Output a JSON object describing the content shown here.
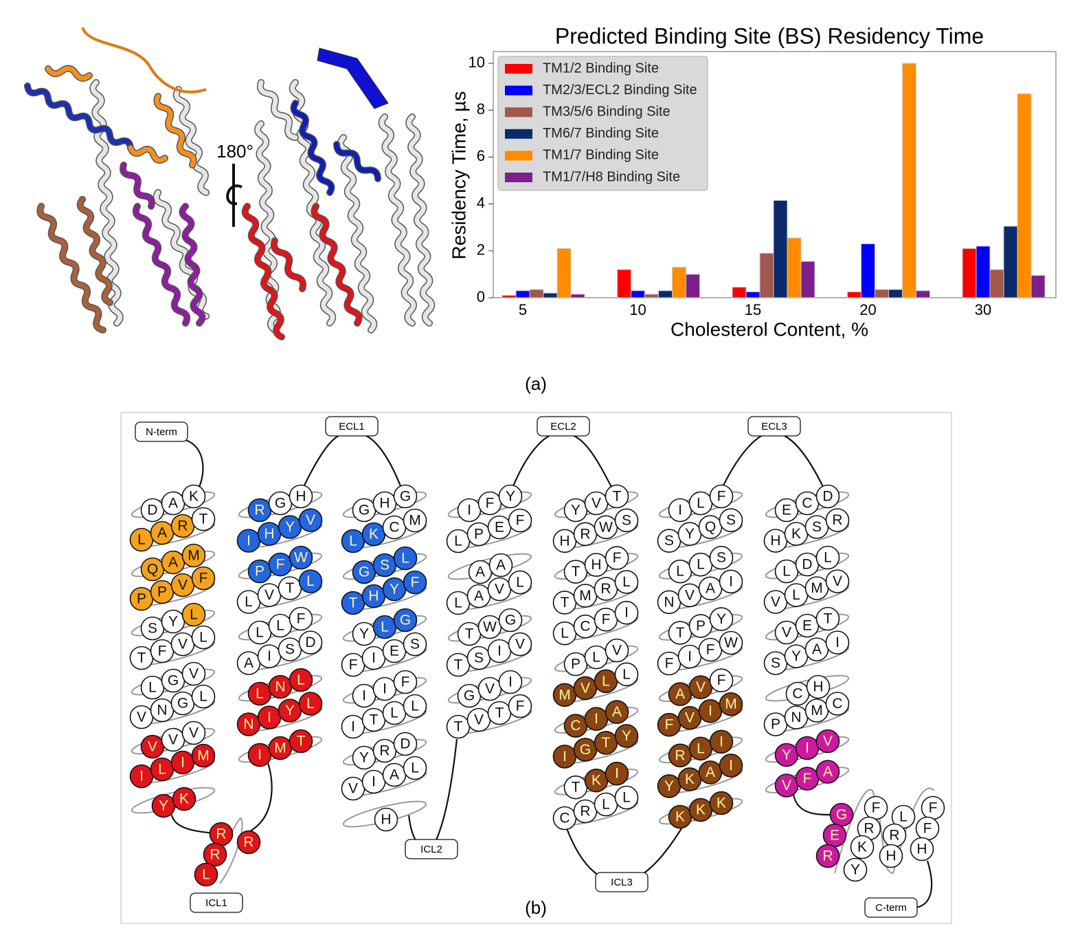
{
  "panel_a_label": "(a)",
  "panel_b_label": "(b)",
  "rotation_label": "180°",
  "chart_data": {
    "type": "bar",
    "title": "Predicted Binding Site (BS) Residency Time",
    "x_label": "Cholesterol Content, %",
    "y_label": "Residency Time, µs",
    "categories": [
      "5",
      "10",
      "15",
      "20",
      "30"
    ],
    "series": [
      {
        "name": "TM1/2 Binding Site",
        "color": "#ff0000",
        "values": [
          0.1,
          1.2,
          0.45,
          0.25,
          2.1
        ]
      },
      {
        "name": "TM2/3/ECL2 Binding Site",
        "color": "#0000ff",
        "values": [
          0.3,
          0.3,
          0.25,
          2.3,
          2.2
        ]
      },
      {
        "name": "TM3/5/6 Binding Site",
        "color": "#a0584e",
        "values": [
          0.35,
          0.15,
          1.9,
          0.35,
          1.2
        ]
      },
      {
        "name": "TM6/7 Binding Site",
        "color": "#0a2a6b",
        "values": [
          0.2,
          0.3,
          4.15,
          0.35,
          3.05
        ]
      },
      {
        "name": "TM1/7 Binding Site",
        "color": "#ff8c00",
        "values": [
          2.1,
          1.3,
          2.55,
          10.0,
          8.7
        ]
      },
      {
        "name": "TM1/7/H8 Binding Site",
        "color": "#7a1f8c",
        "values": [
          0.15,
          1.0,
          1.55,
          0.3,
          0.95
        ]
      }
    ],
    "ylim": [
      0,
      10.5
    ],
    "yticks": [
      0,
      2,
      4,
      6,
      8,
      10
    ],
    "grid": false,
    "legend": "upper-left"
  },
  "snake_plot": {
    "labels": {
      "n_term": "N-term",
      "ecl1": "ECL1",
      "ecl2": "ECL2",
      "ecl3": "ECL3",
      "icl1": "ICL1",
      "icl2": "ICL2",
      "icl3": "ICL3",
      "c_term": "C-term"
    },
    "helices": [
      {
        "rows": [
          [
            "D",
            "A",
            "K"
          ],
          [
            "L",
            "A",
            "R",
            "T"
          ],
          [
            "Q",
            "A",
            "M"
          ],
          [
            "P",
            "P",
            "V",
            "F"
          ],
          [
            "S",
            "Y",
            "L"
          ],
          [
            "T",
            "F",
            "V",
            "L"
          ],
          [
            "L",
            "G",
            "V"
          ],
          [
            "V",
            "N",
            "G",
            "L"
          ],
          [
            "V",
            "V",
            "V"
          ],
          [
            "I",
            "L",
            "I",
            "M"
          ],
          [
            "Y",
            "K"
          ]
        ],
        "fills": [
          [
            "#ffffff",
            "#ffffff",
            "#ffffff"
          ],
          [
            "#f5a21c",
            "#f5a21c",
            "#f5a21c",
            "#ffffff"
          ],
          [
            "#f5a21c",
            "#f5a21c",
            "#f5a21c"
          ],
          [
            "#f5a21c",
            "#f5a21c",
            "#f5a21c",
            "#f5a21c"
          ],
          [
            "#ffffff",
            "#ffffff",
            "#f5a21c"
          ],
          [
            "#ffffff",
            "#ffffff",
            "#ffffff",
            "#ffffff"
          ],
          [
            "#ffffff",
            "#ffffff",
            "#ffffff"
          ],
          [
            "#ffffff",
            "#ffffff",
            "#ffffff",
            "#ffffff"
          ],
          [
            "#e0141b",
            "#ffffff",
            "#ffffff"
          ],
          [
            "#e0141b",
            "#e0141b",
            "#e0141b",
            "#e0141b"
          ],
          [
            "#e0141b",
            "#e0141b"
          ]
        ]
      },
      {
        "rows": [
          [
            "R",
            "G",
            "H"
          ],
          [
            "I",
            "H",
            "Y",
            "V"
          ],
          [
            "P",
            "F",
            "W"
          ],
          [
            "L",
            "V",
            "T",
            "L"
          ],
          [
            "L",
            "L",
            "F"
          ],
          [
            "A",
            "I",
            "S",
            "D"
          ],
          [
            "L",
            "N",
            "L"
          ],
          [
            "N",
            "I",
            "Y",
            "L"
          ],
          [
            "I",
            "M",
            "T"
          ]
        ],
        "fills": [
          [
            "#2466e0",
            "#ffffff",
            "#ffffff"
          ],
          [
            "#2466e0",
            "#2466e0",
            "#2466e0",
            "#2466e0"
          ],
          [
            "#2466e0",
            "#2466e0",
            "#2466e0"
          ],
          [
            "#ffffff",
            "#ffffff",
            "#ffffff",
            "#2466e0"
          ],
          [
            "#ffffff",
            "#ffffff",
            "#ffffff"
          ],
          [
            "#ffffff",
            "#ffffff",
            "#ffffff",
            "#ffffff"
          ],
          [
            "#e0141b",
            "#e0141b",
            "#e0141b"
          ],
          [
            "#e0141b",
            "#e0141b",
            "#e0141b",
            "#e0141b"
          ],
          [
            "#e0141b",
            "#e0141b",
            "#e0141b"
          ]
        ]
      },
      {
        "rows": [
          [
            "G",
            "H",
            "G"
          ],
          [
            "L",
            "K",
            "C",
            "M"
          ],
          [
            "G",
            "S",
            "L"
          ],
          [
            "T",
            "H",
            "Y",
            "F"
          ],
          [
            "Y",
            "L",
            "G"
          ],
          [
            "F",
            "I",
            "E",
            "S"
          ],
          [
            "I",
            "I",
            "F"
          ],
          [
            "I",
            "T",
            "L",
            "L"
          ],
          [
            "Y",
            "R",
            "D"
          ],
          [
            "V",
            "I",
            "A",
            "L"
          ],
          [
            "H"
          ]
        ],
        "fills": [
          [
            "#ffffff",
            "#ffffff",
            "#ffffff"
          ],
          [
            "#2466e0",
            "#2466e0",
            "#ffffff",
            "#ffffff"
          ],
          [
            "#2466e0",
            "#2466e0",
            "#2466e0"
          ],
          [
            "#2466e0",
            "#2466e0",
            "#2466e0",
            "#2466e0"
          ],
          [
            "#ffffff",
            "#2466e0",
            "#2466e0"
          ],
          [
            "#ffffff",
            "#ffffff",
            "#ffffff",
            "#ffffff"
          ],
          [
            "#ffffff",
            "#ffffff",
            "#ffffff"
          ],
          [
            "#ffffff",
            "#ffffff",
            "#ffffff",
            "#ffffff"
          ],
          [
            "#ffffff",
            "#ffffff",
            "#ffffff"
          ],
          [
            "#ffffff",
            "#ffffff",
            "#ffffff",
            "#ffffff"
          ],
          [
            "#ffffff"
          ]
        ]
      },
      {
        "rows": [
          [
            "I",
            "F",
            "Y"
          ],
          [
            "L",
            "P",
            "E",
            "F"
          ],
          [
            "A",
            "A"
          ],
          [
            "L",
            "A",
            "V",
            "L"
          ],
          [
            "T",
            "W",
            "G"
          ],
          [
            "T",
            "S",
            "I",
            "V"
          ],
          [
            "G",
            "V",
            "I"
          ],
          [
            "T",
            "V",
            "T",
            "F"
          ]
        ],
        "fills": [
          [
            "#ffffff",
            "#ffffff",
            "#ffffff"
          ],
          [
            "#ffffff",
            "#ffffff",
            "#ffffff",
            "#ffffff"
          ],
          [
            "#ffffff",
            "#ffffff"
          ],
          [
            "#ffffff",
            "#ffffff",
            "#ffffff",
            "#ffffff"
          ],
          [
            "#ffffff",
            "#ffffff",
            "#ffffff"
          ],
          [
            "#ffffff",
            "#ffffff",
            "#ffffff",
            "#ffffff"
          ],
          [
            "#ffffff",
            "#ffffff",
            "#ffffff"
          ],
          [
            "#ffffff",
            "#ffffff",
            "#ffffff",
            "#ffffff"
          ]
        ]
      },
      {
        "rows": [
          [
            "Y",
            "V",
            "T"
          ],
          [
            "H",
            "R",
            "W",
            "S"
          ],
          [
            "T",
            "H",
            "F"
          ],
          [
            "T",
            "M",
            "R",
            "L"
          ],
          [
            "L",
            "C",
            "F",
            "I"
          ],
          [
            "P",
            "L",
            "V"
          ],
          [
            "M",
            "V",
            "L",
            "L"
          ],
          [
            "C",
            "I",
            "A"
          ],
          [
            "I",
            "G",
            "T",
            "Y"
          ],
          [
            "T",
            "K",
            "I"
          ],
          [
            "C",
            "R",
            "L",
            "L"
          ]
        ],
        "fills": [
          [
            "#ffffff",
            "#ffffff",
            "#ffffff"
          ],
          [
            "#ffffff",
            "#ffffff",
            "#ffffff",
            "#ffffff"
          ],
          [
            "#ffffff",
            "#ffffff",
            "#ffffff"
          ],
          [
            "#ffffff",
            "#ffffff",
            "#ffffff",
            "#ffffff"
          ],
          [
            "#ffffff",
            "#ffffff",
            "#ffffff",
            "#ffffff"
          ],
          [
            "#ffffff",
            "#ffffff",
            "#ffffff"
          ],
          [
            "#8b4513",
            "#8b4513",
            "#8b4513",
            "#ffffff"
          ],
          [
            "#8b4513",
            "#8b4513",
            "#8b4513"
          ],
          [
            "#8b4513",
            "#8b4513",
            "#8b4513",
            "#8b4513"
          ],
          [
            "#ffffff",
            "#8b4513",
            "#8b4513"
          ],
          [
            "#ffffff",
            "#ffffff",
            "#ffffff",
            "#ffffff"
          ]
        ]
      },
      {
        "rows": [
          [
            "I",
            "L",
            "F"
          ],
          [
            "S",
            "Y",
            "Q",
            "S"
          ],
          [
            "L",
            "L",
            "S"
          ],
          [
            "N",
            "V",
            "A",
            "I"
          ],
          [
            "T",
            "P",
            "Y"
          ],
          [
            "F",
            "I",
            "F",
            "W"
          ],
          [
            "A",
            "V",
            "F"
          ],
          [
            "F",
            "V",
            "I",
            "M"
          ],
          [
            "R",
            "L",
            "I"
          ],
          [
            "Y",
            "K",
            "A",
            "I"
          ],
          [
            "K",
            "K",
            "K"
          ]
        ],
        "fills": [
          [
            "#ffffff",
            "#ffffff",
            "#ffffff"
          ],
          [
            "#ffffff",
            "#ffffff",
            "#ffffff",
            "#ffffff"
          ],
          [
            "#ffffff",
            "#ffffff",
            "#ffffff"
          ],
          [
            "#ffffff",
            "#ffffff",
            "#ffffff",
            "#ffffff"
          ],
          [
            "#ffffff",
            "#ffffff",
            "#ffffff"
          ],
          [
            "#ffffff",
            "#ffffff",
            "#ffffff",
            "#ffffff"
          ],
          [
            "#8b4513",
            "#8b4513",
            "#ffffff"
          ],
          [
            "#8b4513",
            "#8b4513",
            "#8b4513",
            "#8b4513"
          ],
          [
            "#8b4513",
            "#8b4513",
            "#8b4513"
          ],
          [
            "#8b4513",
            "#8b4513",
            "#8b4513",
            "#8b4513"
          ],
          [
            "#8b4513",
            "#8b4513",
            "#8b4513"
          ]
        ]
      },
      {
        "rows": [
          [
            "E",
            "C",
            "D"
          ],
          [
            "H",
            "K",
            "S",
            "R"
          ],
          [
            "L",
            "D",
            "L"
          ],
          [
            "V",
            "L",
            "M",
            "V"
          ],
          [
            "V",
            "E",
            "T"
          ],
          [
            "S",
            "Y",
            "A",
            "I"
          ],
          [
            "C",
            "H"
          ],
          [
            "P",
            "N",
            "M",
            "C"
          ],
          [
            "Y",
            "I",
            "V"
          ],
          [
            "V",
            "F",
            "A"
          ]
        ],
        "fills": [
          [
            "#ffffff",
            "#ffffff",
            "#ffffff"
          ],
          [
            "#ffffff",
            "#ffffff",
            "#ffffff",
            "#ffffff"
          ],
          [
            "#ffffff",
            "#ffffff",
            "#ffffff"
          ],
          [
            "#ffffff",
            "#ffffff",
            "#ffffff",
            "#ffffff"
          ],
          [
            "#ffffff",
            "#ffffff",
            "#ffffff"
          ],
          [
            "#ffffff",
            "#ffffff",
            "#ffffff",
            "#ffffff"
          ],
          [
            "#ffffff",
            "#ffffff"
          ],
          [
            "#ffffff",
            "#ffffff",
            "#ffffff",
            "#ffffff"
          ],
          [
            "#cc1aa0",
            "#cc1aa0",
            "#cc1aa0"
          ],
          [
            "#cc1aa0",
            "#cc1aa0",
            "#cc1aa0"
          ]
        ]
      }
    ],
    "loops": [
      {
        "residues": [
          "R",
          "R",
          "R",
          "L"
        ],
        "fills": [
          "#e0141b",
          "#e0141b",
          "#e0141b",
          "#e0141b"
        ]
      },
      {
        "residues": [
          "G",
          "E",
          "R",
          "F",
          "R",
          "K",
          "Y",
          "L",
          "R",
          "H",
          "F",
          "F",
          "H"
        ],
        "fills": [
          "#cc1aa0",
          "#cc1aa0",
          "#cc1aa0",
          "#ffffff",
          "#ffffff",
          "#ffffff",
          "#ffffff",
          "#ffffff",
          "#ffffff",
          "#ffffff",
          "#ffffff",
          "#ffffff",
          "#ffffff"
        ]
      }
    ]
  }
}
